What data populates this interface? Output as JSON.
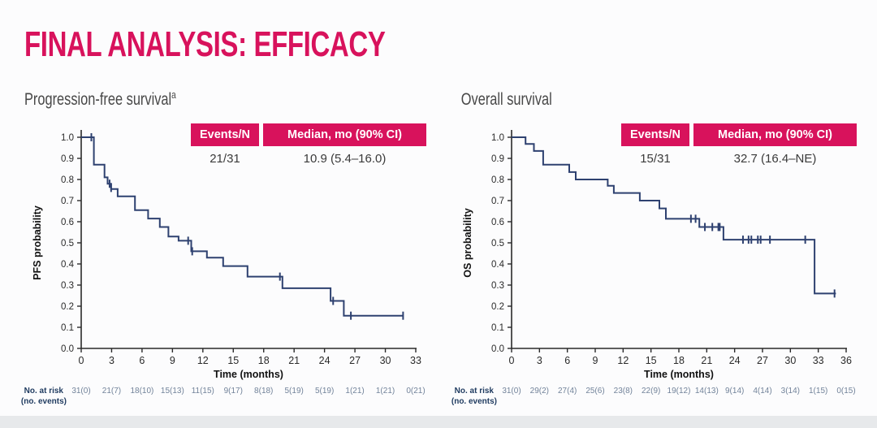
{
  "title": "FINAL ANALYSIS: EFFICACY",
  "colors": {
    "accent": "#d8125c",
    "curve": "#2e4170",
    "axis": "#2a2a2a",
    "axis_title": "#111111",
    "risk_numbers": "#72839a",
    "risk_label": "#1e3a5f",
    "subtitle": "#474747"
  },
  "risk_axis_label": {
    "line1": "No. at risk",
    "line2": "(no. events)"
  },
  "chart_data": [
    {
      "type": "line",
      "km_plot": true,
      "subtitle": "Progression-free survival",
      "subtitle_superscript": "a",
      "stats_table": {
        "headers": [
          "Events/N",
          "Median, mo (90% CI)"
        ],
        "events_n": "21/31",
        "median": "10.9 (5.4–16.0)"
      },
      "xlabel": "Time (months)",
      "ylabel": "PFS probability",
      "xlim": [
        0,
        33
      ],
      "ylim": [
        0.0,
        1.0
      ],
      "xticks": [
        0,
        3,
        6,
        9,
        12,
        15,
        18,
        21,
        24,
        27,
        30,
        33
      ],
      "yticks": [
        0.0,
        0.1,
        0.2,
        0.3,
        0.4,
        0.5,
        0.6,
        0.7,
        0.8,
        0.9,
        1.0
      ],
      "grid": false,
      "steps": [
        [
          0,
          1.0
        ],
        [
          1.25,
          0.87
        ],
        [
          2.3,
          0.81
        ],
        [
          2.6,
          0.78
        ],
        [
          2.95,
          0.755
        ],
        [
          3.6,
          0.72
        ],
        [
          5.3,
          0.655
        ],
        [
          6.6,
          0.615
        ],
        [
          7.75,
          0.575
        ],
        [
          8.6,
          0.53
        ],
        [
          9.6,
          0.51
        ],
        [
          10.85,
          0.46
        ],
        [
          12.4,
          0.43
        ],
        [
          14.0,
          0.39
        ],
        [
          16.4,
          0.34
        ],
        [
          19.85,
          0.285
        ],
        [
          24.6,
          0.225
        ],
        [
          25.9,
          0.155
        ]
      ],
      "end_time": 31.8,
      "censors": [
        [
          1.0,
          1.0
        ],
        [
          2.8,
          0.78
        ],
        [
          2.95,
          0.76
        ],
        [
          10.55,
          0.51
        ],
        [
          10.95,
          0.46
        ],
        [
          19.6,
          0.34
        ],
        [
          24.85,
          0.225
        ],
        [
          26.6,
          0.155
        ],
        [
          31.75,
          0.155
        ]
      ],
      "at_risk": [
        "31(0)",
        "21(7)",
        "18(10)",
        "15(13)",
        "11(15)",
        "9(17)",
        "8(18)",
        "5(19)",
        "5(19)",
        "1(21)",
        "1(21)",
        "0(21)"
      ]
    },
    {
      "type": "line",
      "km_plot": true,
      "subtitle": "Overall survival",
      "subtitle_superscript": "",
      "stats_table": {
        "headers": [
          "Events/N",
          "Median, mo (90% CI)"
        ],
        "events_n": "15/31",
        "median": "32.7 (16.4–NE)"
      },
      "xlabel": "Time (months)",
      "ylabel": "OS probability",
      "xlim": [
        0,
        36
      ],
      "ylim": [
        0.0,
        1.0
      ],
      "xticks": [
        0,
        3,
        6,
        9,
        12,
        15,
        18,
        21,
        24,
        27,
        30,
        33,
        36
      ],
      "yticks": [
        0.0,
        0.1,
        0.2,
        0.3,
        0.4,
        0.5,
        0.6,
        0.7,
        0.8,
        0.9,
        1.0
      ],
      "grid": false,
      "steps": [
        [
          0,
          1.0
        ],
        [
          1.5,
          0.968
        ],
        [
          2.4,
          0.935
        ],
        [
          3.4,
          0.87
        ],
        [
          6.2,
          0.835
        ],
        [
          6.9,
          0.8
        ],
        [
          10.35,
          0.77
        ],
        [
          11.0,
          0.736
        ],
        [
          13.8,
          0.7
        ],
        [
          15.9,
          0.663
        ],
        [
          16.6,
          0.614
        ],
        [
          20.2,
          0.575
        ],
        [
          22.8,
          0.515
        ],
        [
          32.6,
          0.26
        ]
      ],
      "end_time": 34.9,
      "censors": [
        [
          19.3,
          0.614
        ],
        [
          19.8,
          0.614
        ],
        [
          20.8,
          0.575
        ],
        [
          21.6,
          0.575
        ],
        [
          22.25,
          0.575
        ],
        [
          22.4,
          0.575
        ],
        [
          24.9,
          0.515
        ],
        [
          25.5,
          0.515
        ],
        [
          25.8,
          0.515
        ],
        [
          26.5,
          0.515
        ],
        [
          26.8,
          0.515
        ],
        [
          27.8,
          0.515
        ],
        [
          31.6,
          0.515
        ],
        [
          34.75,
          0.26
        ]
      ],
      "at_risk": [
        "31(0)",
        "29(2)",
        "27(4)",
        "25(6)",
        "23(8)",
        "22(9)",
        "19(12)",
        "14(13)",
        "9(14)",
        "4(14)",
        "3(14)",
        "1(15)",
        "0(15)"
      ]
    }
  ]
}
